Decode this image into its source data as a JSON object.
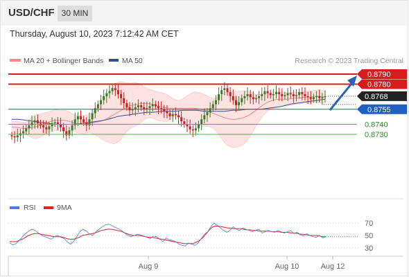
{
  "header": {
    "symbol": "USD/CHF",
    "timeframe": "30 MIN",
    "datetime": "Thursday, August 10, 2023 7:12:42 AM CET",
    "credit": "Research © 2023 Trading Central"
  },
  "legend": {
    "ma20": "MA 20 + Bollinger Bands",
    "ma50": "MA 50",
    "ma20_color": "#f28b82",
    "ma50_color": "#2e4f8f"
  },
  "colors": {
    "up_candle": "#3c7a2a",
    "down_candle": "#cc1f1f",
    "resistance": "#d61c1c",
    "pivot": "#1f5fbf",
    "support": "#4caf50",
    "band_fill": "#fde2e2",
    "arrow": "#2b63b7",
    "price_box": "#222222"
  },
  "levels": [
    {
      "value": 0.879,
      "label": "0.8790",
      "kind": "resistance"
    },
    {
      "value": 0.878,
      "label": "0.8780",
      "kind": "resistance"
    },
    {
      "value": 0.8768,
      "label": "0.8768",
      "kind": "last-price"
    },
    {
      "value": 0.8755,
      "label": "0.8755",
      "kind": "pivot"
    },
    {
      "value": 0.874,
      "label": "0.8740",
      "kind": "support"
    },
    {
      "value": 0.873,
      "label": "0.8730",
      "kind": "support"
    }
  ],
  "rsi_panel": {
    "rsi_label": "RSI",
    "ma_label": "9MA",
    "rsi_color": "#5577dd",
    "ma_color": "#dd2222",
    "ticks": [
      {
        "value": 70,
        "label": "70"
      },
      {
        "value": 50,
        "label": "50"
      },
      {
        "value": 30,
        "label": "30"
      }
    ]
  },
  "xaxis_ticks": [
    "Aug 9",
    "Aug 10",
    "Aug 12"
  ],
  "chart_data": {
    "type": "candlestick",
    "instrument": "USD/CHF",
    "timeframe": "30 MIN",
    "ylim": [
      0.8722,
      0.8797
    ],
    "close_path": [
      0.8728,
      0.8727,
      0.8729,
      0.8731,
      0.8733,
      0.8736,
      0.8739,
      0.8742,
      0.8744,
      0.8741,
      0.8739,
      0.8737,
      0.8735,
      0.8738,
      0.8741,
      0.8742,
      0.874,
      0.8737,
      0.8733,
      0.8729,
      0.8734,
      0.8739,
      0.8745,
      0.8748,
      0.8745,
      0.8742,
      0.8739,
      0.8745,
      0.8751,
      0.8756,
      0.876,
      0.8764,
      0.8768,
      0.8771,
      0.8773,
      0.8776,
      0.8774,
      0.877,
      0.8766,
      0.8761,
      0.8757,
      0.8754,
      0.8755,
      0.8757,
      0.8759,
      0.8757,
      0.8755,
      0.8756,
      0.8758,
      0.876,
      0.8758,
      0.8756,
      0.8755,
      0.8753,
      0.8751,
      0.8748,
      0.875,
      0.8749,
      0.8747,
      0.8743,
      0.874,
      0.8738,
      0.8735,
      0.8734,
      0.8736,
      0.874,
      0.8745,
      0.8749,
      0.8752,
      0.8756,
      0.876,
      0.8764,
      0.877,
      0.8774,
      0.8776,
      0.8772,
      0.8768,
      0.8764,
      0.8759,
      0.8762,
      0.8766,
      0.8768,
      0.877,
      0.8767,
      0.8765,
      0.8766,
      0.8768,
      0.877,
      0.8773,
      0.8771,
      0.8769,
      0.877,
      0.8772,
      0.877,
      0.8768,
      0.8769,
      0.8771,
      0.877,
      0.8768,
      0.8769,
      0.8772,
      0.877,
      0.8768,
      0.8767,
      0.8765,
      0.8767,
      0.8768,
      0.8766,
      0.8767,
      0.8768
    ],
    "ma20_path": [
      0.8737,
      0.8737,
      0.8736,
      0.8736,
      0.8737,
      0.8738,
      0.874,
      0.8742,
      0.8744,
      0.8744,
      0.8744,
      0.8743,
      0.8741,
      0.874,
      0.874,
      0.8741,
      0.8742,
      0.8743,
      0.8745,
      0.8748,
      0.8751,
      0.8754,
      0.8757,
      0.8759,
      0.876,
      0.8761,
      0.8761,
      0.876,
      0.8758,
      0.8757,
      0.8756,
      0.8756,
      0.8756,
      0.8756,
      0.8756,
      0.8756,
      0.8755,
      0.8754,
      0.8752,
      0.875,
      0.8748,
      0.8746,
      0.8745,
      0.8745,
      0.8746,
      0.8748,
      0.8751,
      0.8755,
      0.8759,
      0.8762,
      0.8764,
      0.8765,
      0.8765,
      0.8765,
      0.8766,
      0.8766,
      0.8767,
      0.8767,
      0.8768,
      0.8768,
      0.8767
    ],
    "ma50_path": [
      0.8745,
      0.8745,
      0.8744,
      0.8743,
      0.8742,
      0.8741,
      0.874,
      0.874,
      0.874,
      0.874,
      0.8741,
      0.8742,
      0.8743,
      0.8744,
      0.8746,
      0.8748,
      0.8749,
      0.875,
      0.8751,
      0.8752,
      0.8752,
      0.8753,
      0.8753,
      0.8753,
      0.8754,
      0.8754,
      0.8754,
      0.8753,
      0.8753,
      0.8753,
      0.8753,
      0.8754,
      0.8754,
      0.8755,
      0.8755,
      0.8755,
      0.8756,
      0.8757,
      0.8758,
      0.876,
      0.8761,
      0.8762,
      0.8763,
      0.8764,
      0.8765
    ],
    "rsi_path": [
      38,
      35,
      37,
      42,
      48,
      53,
      57,
      60,
      58,
      54,
      50,
      48,
      46,
      44,
      48,
      50,
      47,
      45,
      40,
      36,
      40,
      48,
      56,
      60,
      57,
      52,
      50,
      56,
      60,
      64,
      67,
      68,
      66,
      63,
      61,
      58,
      54,
      50,
      48,
      50,
      52,
      51,
      49,
      47,
      45,
      49,
      48,
      44,
      40,
      46,
      43,
      42,
      40,
      36,
      34,
      33,
      38,
      36,
      34,
      38,
      45,
      52,
      56,
      64,
      70,
      66,
      62,
      58,
      55,
      58,
      64,
      60,
      58,
      62,
      60,
      58,
      56,
      58,
      60,
      54,
      56,
      58,
      56,
      55,
      58,
      56,
      54,
      56,
      58,
      53,
      55,
      51,
      49,
      53,
      50,
      48,
      47,
      50,
      46,
      48
    ],
    "rsi_ma_path": [
      40,
      40,
      40,
      42,
      44,
      47,
      50,
      52,
      53,
      53,
      52,
      51,
      50,
      49,
      48,
      48,
      48,
      47,
      45,
      44,
      44,
      45,
      47,
      50,
      51,
      52,
      53,
      54,
      56,
      58,
      59,
      60,
      60,
      59,
      58,
      57,
      55,
      53,
      51,
      50,
      50,
      50,
      49,
      48,
      47,
      47,
      46,
      45,
      44,
      43,
      42,
      41,
      40,
      39,
      38,
      37,
      37,
      37,
      37,
      39,
      42,
      46,
      52,
      58,
      63,
      65,
      65,
      64,
      63,
      62,
      62,
      61,
      61,
      61,
      60,
      59,
      59,
      58,
      58,
      57,
      57,
      57,
      57,
      56,
      56,
      56,
      55,
      55,
      55,
      54,
      54,
      53,
      52,
      52,
      51,
      50,
      50,
      50,
      49,
      48,
      48
    ],
    "xaxis_ticks": [
      "Aug 9",
      "Aug 10",
      "Aug 12"
    ]
  }
}
